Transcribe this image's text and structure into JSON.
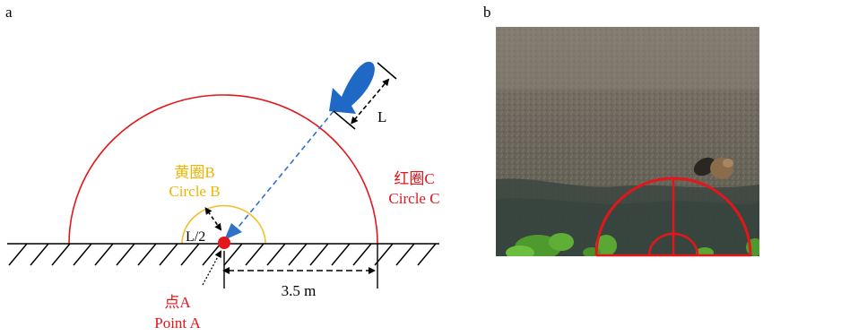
{
  "panel_a": {
    "label": "a",
    "circle_b_cn": "黄圈B",
    "circle_b_en": "Circle B",
    "circle_c_cn": "红圈C",
    "circle_c_en": "Circle C",
    "point_a_cn": "点A",
    "point_a_en": "Point A",
    "half_length": "L/2",
    "length": "L",
    "distance": "3.5 m"
  },
  "panel_b": {
    "label": "b"
  },
  "colors": {
    "red": "#e3161b",
    "yellow": "#f2c02e",
    "blue": "#2f73c9",
    "ground": "#000000",
    "red_text": "#e3161b",
    "yellow_text": "#f0b400"
  }
}
